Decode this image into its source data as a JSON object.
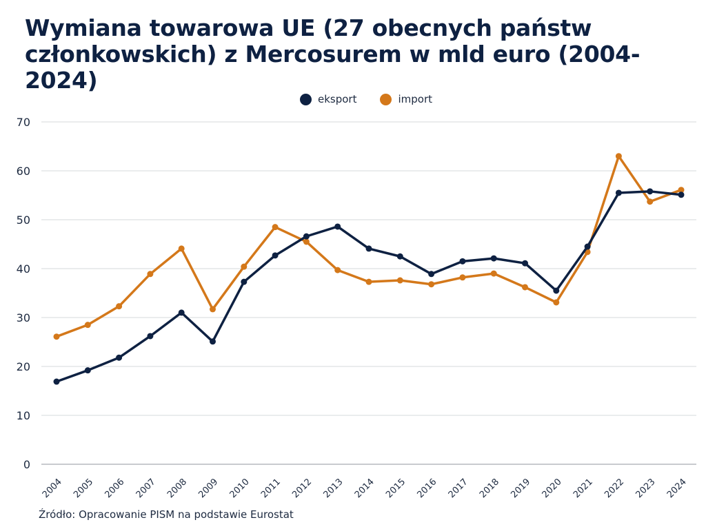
{
  "chart_data": {
    "type": "line",
    "title": "Wymiana towarowa UE (27 obecnych państw członkowskich) z Mercosurem w mld euro (2004-2024)",
    "xlabel": "",
    "ylabel": "",
    "x": [
      "2004",
      "2005",
      "2006",
      "2007",
      "2008",
      "2009",
      "2010",
      "2011",
      "2012",
      "2013",
      "2014",
      "2015",
      "2016",
      "2017",
      "2018",
      "2019",
      "2020",
      "2021",
      "2022",
      "2023",
      "2024"
    ],
    "ylim": [
      0,
      70
    ],
    "yticks": [
      0,
      10,
      20,
      30,
      40,
      50,
      60,
      70
    ],
    "grid": true,
    "legend_position": "top-center",
    "series": [
      {
        "name": "eksport",
        "color": "#0e2142",
        "values": [
          16.9,
          19.2,
          21.8,
          26.2,
          31.0,
          25.1,
          37.3,
          42.7,
          46.6,
          48.6,
          44.1,
          42.5,
          38.9,
          41.5,
          42.1,
          41.1,
          35.5,
          44.5,
          55.5,
          55.8,
          55.1
        ]
      },
      {
        "name": "import",
        "color": "#d4781a",
        "values": [
          26.1,
          28.5,
          32.3,
          38.9,
          44.1,
          31.7,
          40.4,
          48.5,
          45.5,
          39.7,
          37.3,
          37.6,
          36.8,
          38.2,
          39.0,
          36.2,
          33.1,
          43.4,
          63.0,
          53.7,
          56.1
        ]
      }
    ],
    "source": "Źródło: Opracowanie PISM na podstawie Eurostat"
  },
  "header": {
    "title": "Wymiana towarowa UE (27 obecnych państw członkowskich) z Mercosurem w mld euro (2004-2024)"
  },
  "legend": {
    "items": [
      {
        "label": "eksport",
        "color": "#0e2142"
      },
      {
        "label": "import",
        "color": "#d4781a"
      }
    ]
  },
  "footer": {
    "source": "Źródło: Opracowanie PISM na podstawie Eurostat"
  }
}
